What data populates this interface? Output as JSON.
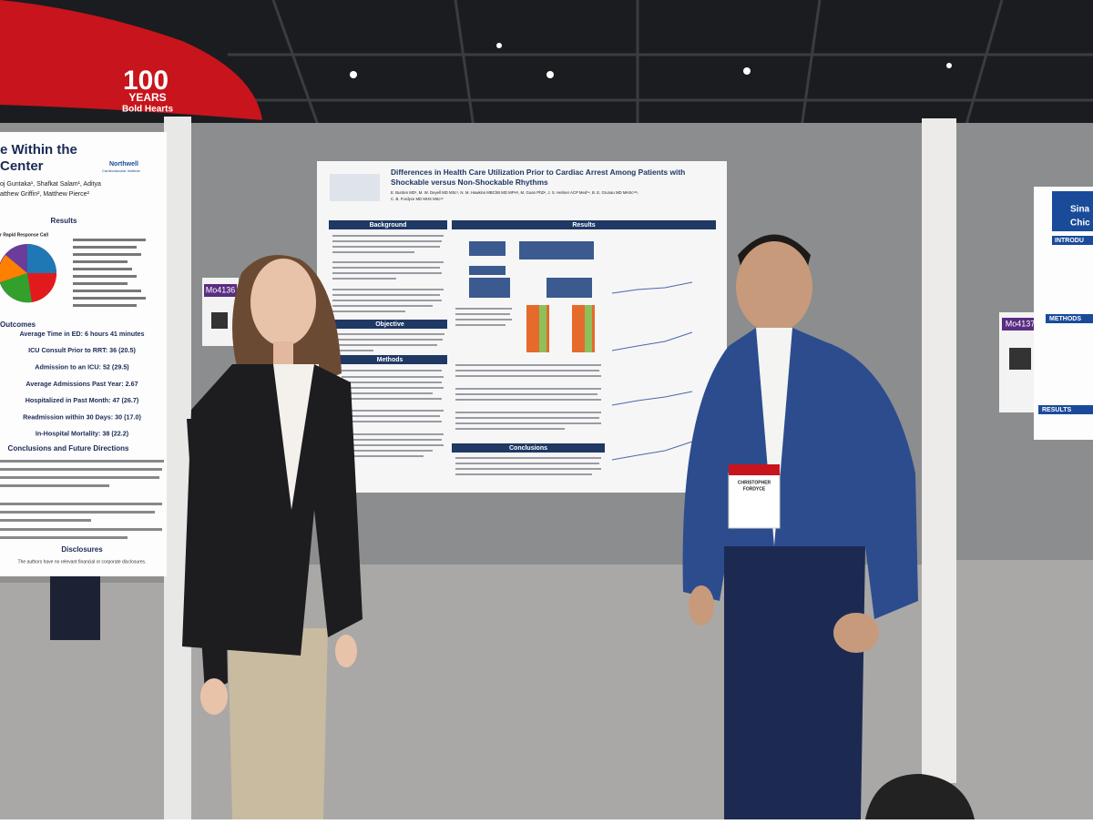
{
  "banner": {
    "number": "100",
    "years": "YEARS",
    "tagline": "Bold Hearts"
  },
  "left_poster": {
    "title_lines": [
      "e Within the",
      "Center"
    ],
    "author_lines": [
      "oj Guntaka¹, Shafkat Salam¹, Aditya",
      "atthew Griffin², Matthew Pierce²"
    ],
    "logo": "Northwell",
    "logo_sub": "Cardiovascular Institute",
    "results_heading": "Results",
    "chart_caption": "r Rapid Response Call",
    "outcomes_heading": "Outcomes",
    "outcomes": [
      "Average Time in ED: 6 hours 41 minutes",
      "ICU Consult Prior to RRT: 36 (20.5)",
      "Admission to an ICU: 52 (29.5)",
      "Average Admissions Past Year: 2.67",
      "Hospitalized in Past Month: 47 (26.7)",
      "Readmission within 30 Days: 30 (17.0)",
      "In-Hospital Mortality: 38 (22.2)"
    ],
    "conclusions_heading": "Conclusions and Future Directions",
    "disclosures_heading": "Disclosures",
    "disclosures_text": "The authors have no relevant financial or corporate disclosures."
  },
  "main_poster": {
    "title_lines": [
      "Differences in Health Care Utilization Prior to Cardiac Arrest Among Patients with",
      "Shockable versus Non-Shockable Rhythms"
    ],
    "author_lines": [
      "E. Burden MD¹, M. W. Deyell MD MSc¹, N. M. Hawkins MBChB MD MPH¹, M. Guan PhD², J. S. Helmer ACP Med³⁴, B. E. Grunau MD MHSc¹³⁵,",
      "C. B. Fordyce MD MHS MSc¹²"
    ],
    "sections": {
      "background": "Background",
      "objective": "Objective",
      "methods": "Methods",
      "results": "Results",
      "conclusions": "Conclusions"
    },
    "board_id": "Mo4136"
  },
  "right_poster": {
    "title_lines": [
      "Sina",
      "Chic"
    ],
    "sections": [
      "INTRODU",
      "METHODS",
      "RESULTS"
    ],
    "board_id": "Mo4137"
  },
  "badge": {
    "name_lines": [
      "CHRISTOPHER",
      "FORDYCE"
    ]
  }
}
